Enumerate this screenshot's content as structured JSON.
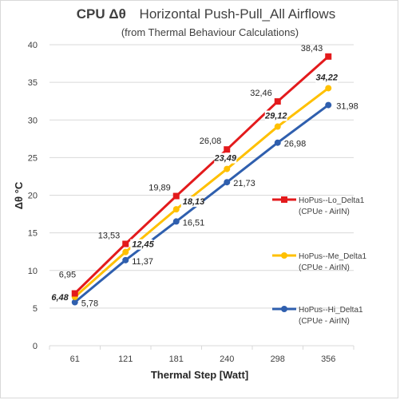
{
  "chart_data": {
    "type": "line",
    "title": {
      "prefix": "CPU Δθ",
      "rest": "Horizontal Push-Pull_All Airflows"
    },
    "subtitle": "(from Thermal Behaviour Calculations)",
    "xlabel": "Thermal Step [Watt]",
    "ylabel": "Δθ °C",
    "categories": [
      "61",
      "121",
      "181",
      "240",
      "298",
      "356"
    ],
    "ylim": [
      0,
      40
    ],
    "ytick_step": 5,
    "yticks": [
      "0",
      "5",
      "10",
      "15",
      "20",
      "25",
      "30",
      "35",
      "40"
    ],
    "grid": true,
    "legend_position": "right",
    "series": [
      {
        "key": "lo",
        "name": "HoPus--Lo_Delta1",
        "name_line2": "(CPUe - AirIN)",
        "color": "#e31a1c",
        "marker": "square",
        "values": [
          6.95,
          13.53,
          19.89,
          26.08,
          32.46,
          38.43
        ],
        "labels": [
          "6,95",
          "13,53",
          "19,89",
          "26,08",
          "32,46",
          "38,43"
        ]
      },
      {
        "key": "me",
        "name": "HoPus--Me_Delta1",
        "name_line2": "(CPUe - AirIN)",
        "color": "#ffc000",
        "marker": "circle",
        "values": [
          6.48,
          12.45,
          18.13,
          23.49,
          29.12,
          34.22
        ],
        "labels": [
          "6,48",
          "12,45",
          "18,13",
          "23,49",
          "29,12",
          "34,22"
        ]
      },
      {
        "key": "hi",
        "name": "HoPus--Hi_Delta1",
        "name_line2": "(CPUe - AirIN)",
        "color": "#2f5fae",
        "marker": "circle",
        "values": [
          5.78,
          11.37,
          16.51,
          21.73,
          26.98,
          31.98
        ],
        "labels": [
          "5,78",
          "11,37",
          "16,51",
          "21,73",
          "26,98",
          "31,98"
        ]
      }
    ]
  }
}
